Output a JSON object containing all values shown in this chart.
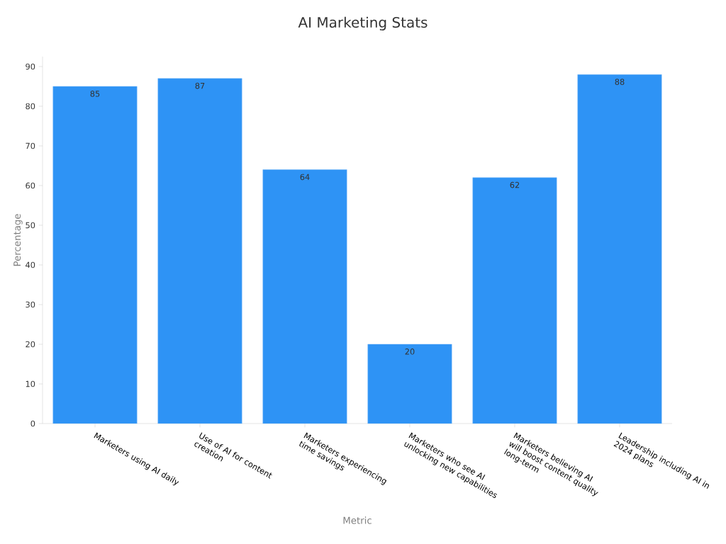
{
  "chart_data": {
    "type": "bar",
    "title": "AI Marketing Stats",
    "xlabel": "Metric",
    "ylabel": "Percentage",
    "categories": [
      "Marketers using AI daily",
      "Use of AI for content creation",
      "Marketers experiencing time savings",
      "Marketers who see AI unlocking new capabilities",
      "Marketers believing AI will boost content quality long-term",
      "Leadership including AI in 2024 plans"
    ],
    "values": [
      85,
      87,
      64,
      20,
      62,
      88
    ],
    "color": "#2e93f5",
    "ylim": [
      0,
      92.5
    ],
    "yticks": [
      0,
      10,
      20,
      30,
      40,
      50,
      60,
      70,
      80,
      90
    ],
    "data_labels": true
  }
}
